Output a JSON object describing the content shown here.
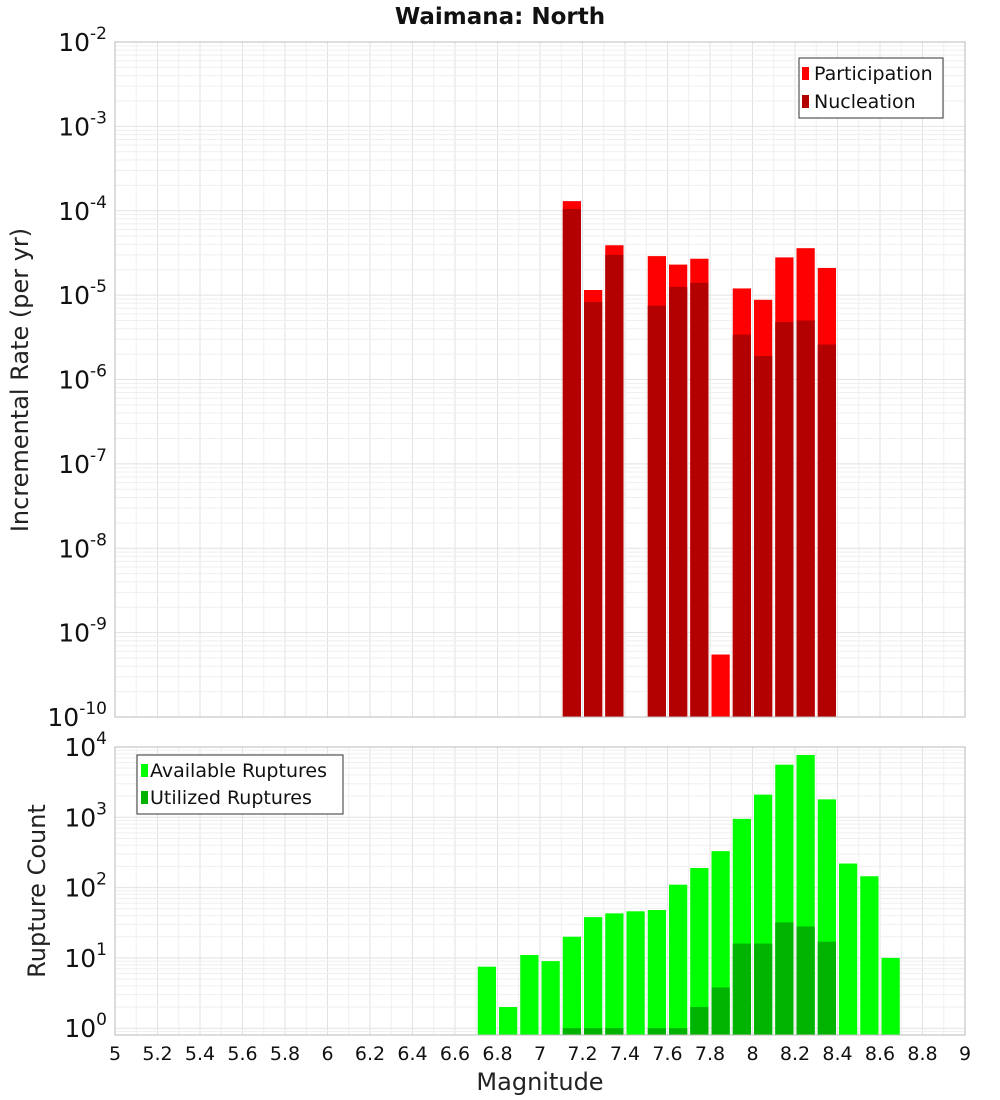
{
  "chart_data": [
    {
      "type": "bar",
      "title": "Waimana: North",
      "xlabel": "",
      "ylabel": "Incremental Rate (per yr)",
      "yscale": "log",
      "ylim": [
        1e-10,
        0.01
      ],
      "xlim": [
        5,
        9
      ],
      "bar_width": 0.1,
      "grid": true,
      "legend_placement": "top-right",
      "x": [
        7.15,
        7.25,
        7.35,
        7.45,
        7.55,
        7.65,
        7.75,
        7.85,
        7.95,
        8.05,
        8.15,
        8.25,
        8.35
      ],
      "series": [
        {
          "name": "Participation",
          "color": "#ff0000",
          "values": [
            0.00013,
            1.15e-05,
            3.9e-05,
            null,
            2.9e-05,
            2.3e-05,
            2.7e-05,
            5.5e-10,
            1.2e-05,
            8.8e-06,
            2.8e-05,
            3.6e-05,
            2.1e-05
          ]
        },
        {
          "name": "Nucleation",
          "color": "#b30000",
          "values": [
            0.000105,
            8.3e-06,
            3e-05,
            null,
            7.5e-06,
            1.25e-05,
            1.4e-05,
            null,
            3.4e-06,
            1.9e-06,
            4.8e-06,
            5e-06,
            2.6e-06
          ]
        }
      ]
    },
    {
      "type": "bar",
      "title": "",
      "xlabel": "Magnitude",
      "ylabel": "Rupture Count",
      "yscale": "log",
      "ylim": [
        0.8,
        10000
      ],
      "xlim": [
        5,
        9
      ],
      "bar_width": 0.1,
      "grid": true,
      "legend_placement": "top-left",
      "x": [
        6.75,
        6.85,
        6.95,
        7.05,
        7.15,
        7.25,
        7.35,
        7.45,
        7.55,
        7.65,
        7.75,
        7.85,
        7.95,
        8.05,
        8.15,
        8.25,
        8.35,
        8.45,
        8.55,
        8.65
      ],
      "x_ticks": [
        "5",
        "5.2",
        "5.4",
        "5.6",
        "5.8",
        "6",
        "6.2",
        "6.4",
        "6.6",
        "6.8",
        "7",
        "7.2",
        "7.4",
        "7.6",
        "7.8",
        "8",
        "8.2",
        "8.4",
        "8.6",
        "8.8",
        "9"
      ],
      "series": [
        {
          "name": "Available Ruptures",
          "color": "#00ff00",
          "values": [
            7.5,
            2,
            11,
            9,
            20,
            38,
            43,
            46,
            48,
            110,
            190,
            330,
            950,
            2100,
            5600,
            7700,
            1800,
            220,
            145,
            10
          ]
        },
        {
          "name": "Utilized Ruptures",
          "color": "#00b300",
          "values": [
            null,
            null,
            null,
            null,
            1,
            1,
            1,
            null,
            1,
            1,
            2,
            3.8,
            16,
            16,
            32,
            28,
            17,
            null,
            null,
            null
          ]
        }
      ]
    }
  ]
}
